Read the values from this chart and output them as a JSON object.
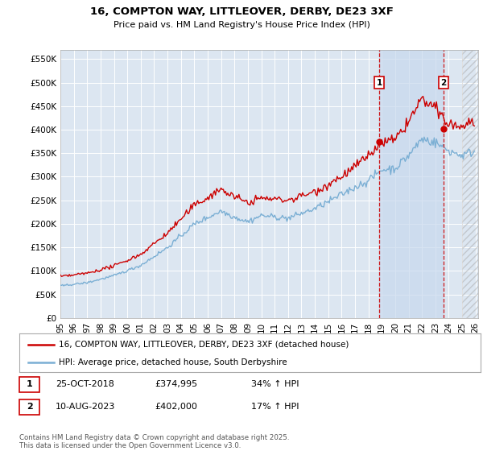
{
  "title": "16, COMPTON WAY, LITTLEOVER, DERBY, DE23 3XF",
  "subtitle": "Price paid vs. HM Land Registry's House Price Index (HPI)",
  "background_color": "#ffffff",
  "plot_bg_color": "#dce6f1",
  "grid_color": "#ffffff",
  "ylim": [
    0,
    570000
  ],
  "yticks": [
    0,
    50000,
    100000,
    150000,
    200000,
    250000,
    300000,
    350000,
    400000,
    450000,
    500000,
    550000
  ],
  "ytick_labels": [
    "£0",
    "£50K",
    "£100K",
    "£150K",
    "£200K",
    "£250K",
    "£300K",
    "£350K",
    "£400K",
    "£450K",
    "£500K",
    "£550K"
  ],
  "xlim_start": 1995.3,
  "xlim_end": 2026.2,
  "xticks": [
    1995,
    1996,
    1997,
    1998,
    1999,
    2000,
    2001,
    2002,
    2003,
    2004,
    2005,
    2006,
    2007,
    2008,
    2009,
    2010,
    2011,
    2012,
    2013,
    2014,
    2015,
    2016,
    2017,
    2018,
    2019,
    2020,
    2021,
    2022,
    2023,
    2024,
    2025,
    2026
  ],
  "xtick_labels": [
    "95",
    "96",
    "97",
    "98",
    "99",
    "00",
    "01",
    "02",
    "03",
    "04",
    "05",
    "06",
    "07",
    "08",
    "09",
    "10",
    "11",
    "12",
    "13",
    "14",
    "15",
    "16",
    "17",
    "18",
    "19",
    "20",
    "21",
    "22",
    "23",
    "24",
    "25",
    "26"
  ],
  "red_line_color": "#cc0000",
  "blue_line_color": "#7bafd4",
  "vline1_x": 2018.82,
  "vline2_x": 2023.61,
  "shade_start": 2018.82,
  "shade_end": 2023.61,
  "hatch_start": 2025.0,
  "sale1_x": 2018.82,
  "sale1_y": 374995,
  "sale2_x": 2023.61,
  "sale2_y": 402000,
  "annotation1": {
    "date": "25-OCT-2018",
    "price": "£374,995",
    "hpi": "34% ↑ HPI"
  },
  "annotation2": {
    "date": "10-AUG-2023",
    "price": "£402,000",
    "hpi": "17% ↑ HPI"
  },
  "legend_line1": "16, COMPTON WAY, LITTLEOVER, DERBY, DE23 3XF (detached house)",
  "legend_line2": "HPI: Average price, detached house, South Derbyshire",
  "footnote": "Contains HM Land Registry data © Crown copyright and database right 2025.\nThis data is licensed under the Open Government Licence v3.0."
}
